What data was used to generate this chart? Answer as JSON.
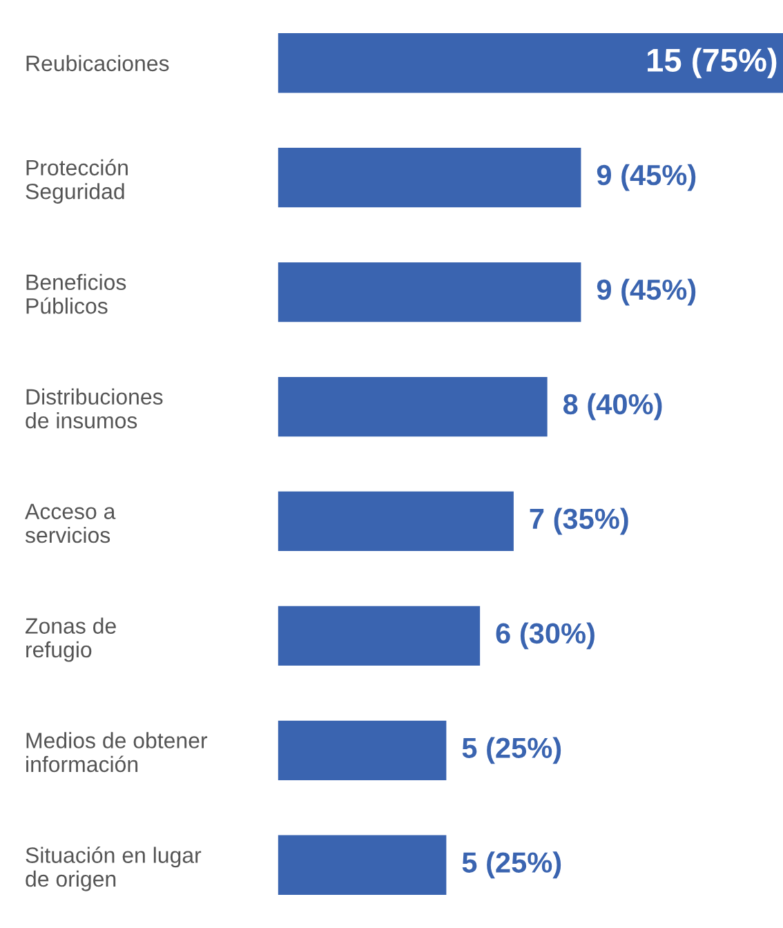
{
  "chart_data": {
    "type": "bar",
    "orientation": "horizontal",
    "categories": [
      "Reubicaciones",
      "Protección\nSeguridad",
      "Beneficios\nPúblicos",
      "Distribuciones\nde insumos",
      "Acceso a\nservicios",
      "Zonas de\nrefugio",
      "Medios de obtener\ninformación",
      "Situación en lugar\nde origen"
    ],
    "values": [
      15,
      9,
      9,
      8,
      7,
      6,
      5,
      5
    ],
    "value_labels": [
      "15 (75%)",
      "9 (45%)",
      "9 (45%)",
      "8 (40%)",
      "7 (35%)",
      "6 (30%)",
      "5 (25%)",
      "5 (25%)"
    ],
    "color": "#3a64b0",
    "grid": false,
    "legend": false
  }
}
